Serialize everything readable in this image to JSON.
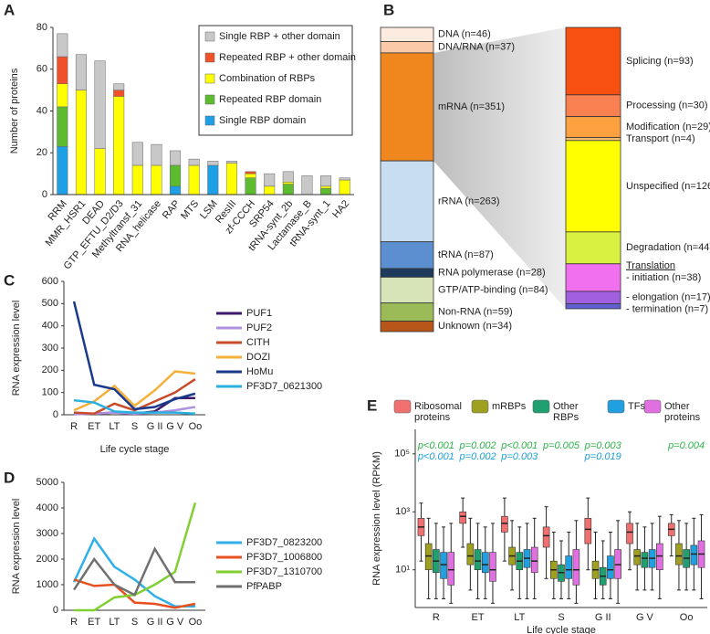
{
  "chart_data": [
    {
      "type": "stacked-bar",
      "panel_label": "A",
      "y_label": "Number of proteins",
      "categories": [
        "RRM",
        "MMR_HSR1",
        "DEAD",
        "GTP_EFTU_D2/D3",
        "Methyltransf_31",
        "RNA_helicase",
        "RAP",
        "MTS",
        "LSM",
        "ResIII",
        "zf-CCCH",
        "SRP54",
        "tRNA-synt_2b",
        "Lactamase_B",
        "tRNA-synt_1",
        "HA2"
      ],
      "ylim": [
        0,
        80
      ],
      "yticks": [
        0,
        20,
        40,
        60,
        80
      ],
      "series": [
        {
          "name": "Single RBP domain",
          "color": "#1ea0e6",
          "values": [
            23,
            0,
            0,
            0,
            0,
            0,
            4,
            0,
            14,
            0,
            0,
            0,
            0,
            0,
            0,
            0
          ]
        },
        {
          "name": "Repeated RBP domain",
          "color": "#5dbb2f",
          "values": [
            19,
            0,
            0,
            0,
            0,
            0,
            10,
            0,
            0,
            0,
            8,
            0,
            5,
            0,
            3,
            0
          ]
        },
        {
          "name": "Combination of RBPs",
          "color": "#ffff00",
          "values": [
            11,
            50,
            22,
            47,
            14,
            14,
            0,
            14,
            0,
            15,
            2,
            4,
            1,
            0,
            1,
            7
          ]
        },
        {
          "name": "Repeated RBP + other domain",
          "color": "#f0502a",
          "values": [
            13,
            0,
            0,
            3,
            0,
            0,
            0,
            0,
            0,
            0,
            1,
            0,
            0,
            0,
            0,
            0
          ]
        },
        {
          "name": "Single RBP + other domain",
          "color": "#c8c8c8",
          "values": [
            11,
            17,
            42,
            3,
            11,
            10,
            7,
            3,
            2,
            1,
            0,
            6,
            5,
            9,
            5,
            1
          ]
        }
      ]
    },
    {
      "type": "stacked-column",
      "panel_label": "B",
      "annotation": "Translation",
      "columns": [
        {
          "values": [
            46,
            37,
            351,
            263,
            87,
            28,
            84,
            59,
            34
          ],
          "value_labels": [
            "DNA (n=46)",
            "DNA/RNA (n=37)",
            "mRNA (n=351)",
            "rRNA (n=263)",
            "tRNA (n=87)",
            "RNA polymerase (n=28)",
            "GTP/ATP-binding (n=84)",
            "Non-RNA (n=59)",
            "Unknown (n=34)"
          ],
          "colors": [
            "#fdebe0",
            "#fbc9a8",
            "#f0861e",
            "#c9ddf1",
            "#5b8fd0",
            "#1f3b5c",
            "#d6e4b8",
            "#9bbb59",
            "#b8561a"
          ]
        },
        {
          "values": [
            93,
            30,
            29,
            4,
            126,
            44,
            38,
            17,
            7
          ],
          "value_labels": [
            "Splicing (n=93)",
            "Processing (n=30)",
            "Modification (n=29)",
            "Transport (n=4)",
            "Unspecified (n=126)",
            "Degradation (n=44)",
            "- initiation (n=38)",
            "- elongation (n=17)",
            "- termination (n=7)"
          ],
          "colors": [
            "#f75010",
            "#f98050",
            "#fca040",
            "#fbc070",
            "#ffff00",
            "#d8f040",
            "#f070f0",
            "#a060e0",
            "#6060d0"
          ]
        }
      ]
    },
    {
      "type": "line",
      "panel_label": "C",
      "y_label": "RNA expression level",
      "x_label": "Life cycle stage",
      "categories": [
        "R",
        "ET",
        "LT",
        "S",
        "G II",
        "G V",
        "Oo"
      ],
      "ylim": [
        0,
        600
      ],
      "yticks": [
        0,
        100,
        200,
        300,
        400,
        500,
        600
      ],
      "series": [
        {
          "name": "PUF1",
          "color": "#3d1a6e",
          "values": [
            5,
            5,
            10,
            5,
            15,
            75,
            75
          ]
        },
        {
          "name": "PUF2",
          "color": "#b090e0",
          "values": [
            2,
            5,
            10,
            5,
            10,
            20,
            35
          ]
        },
        {
          "name": "CITH",
          "color": "#c84b2a",
          "values": [
            10,
            5,
            50,
            20,
            60,
            100,
            160
          ]
        },
        {
          "name": "DOZI",
          "color": "#f5b03c",
          "values": [
            20,
            60,
            130,
            40,
            110,
            195,
            185
          ]
        },
        {
          "name": "HoMu",
          "color": "#1a3a8c",
          "values": [
            510,
            135,
            115,
            25,
            35,
            70,
            95
          ]
        },
        {
          "name": "PF3D7_0621300",
          "color": "#2ab0e0",
          "values": [
            65,
            55,
            15,
            10,
            10,
            10,
            5
          ]
        }
      ]
    },
    {
      "type": "line",
      "panel_label": "D",
      "y_label": "RNA expression level",
      "x_label": "Life cycle stage",
      "categories": [
        "R",
        "ET",
        "LT",
        "S",
        "G II",
        "G V",
        "Oo"
      ],
      "ylim": [
        0,
        5000
      ],
      "yticks": [
        0,
        1000,
        2000,
        3000,
        4000,
        5000
      ],
      "series": [
        {
          "name": "PF3D7_0823200",
          "color": "#30b0e8",
          "values": [
            1100,
            2800,
            1700,
            1200,
            550,
            150,
            150
          ]
        },
        {
          "name": "PF3D7_1006800",
          "color": "#e85020",
          "values": [
            1200,
            950,
            1000,
            300,
            250,
            100,
            250
          ]
        },
        {
          "name": "PF3D7_1310700",
          "color": "#80d030",
          "values": [
            0,
            0,
            500,
            600,
            1000,
            1500,
            4200
          ]
        },
        {
          "name": "PfPABP",
          "color": "#707070",
          "values": [
            800,
            2000,
            1000,
            600,
            2400,
            1100,
            1100
          ]
        }
      ]
    },
    {
      "type": "box",
      "panel_label": "E",
      "y_label": "RNA expression level (RPKM)",
      "x_label": "Life cycle stage",
      "log_scale": true,
      "categories": [
        "R",
        "ET",
        "LT",
        "S",
        "G II",
        "G V",
        "Oo"
      ],
      "ylim": [
        0.5,
        700000
      ],
      "yticks": [
        {
          "value": 10,
          "label": "10¹"
        },
        {
          "value": 1000,
          "label": "10³"
        },
        {
          "value": 100000,
          "label": "10⁵"
        }
      ],
      "p_value_rows": [
        {
          "color": "#2db34a",
          "labels": [
            "p<0.001",
            "p=0.002",
            "p<0.001",
            "p=0.005",
            "p=0.003",
            null,
            "p=0.004"
          ]
        },
        {
          "color": "#1b9fd8",
          "labels": [
            "p<0.001",
            "p=0.002",
            "p=0.003",
            null,
            "p=0.019",
            null,
            null
          ]
        }
      ],
      "series": [
        {
          "name": "Ribosomal proteins",
          "color": "#f07070",
          "median": [
            300,
            700,
            400,
            150,
            250,
            200,
            250
          ],
          "q1": [
            150,
            400,
            200,
            60,
            80,
            80,
            150
          ],
          "q3": [
            600,
            1000,
            700,
            300,
            600,
            400,
            400
          ],
          "low": [
            20,
            60,
            20,
            5,
            10,
            10,
            30
          ],
          "high": [
            2000,
            3000,
            3000,
            1500,
            3000,
            1000,
            800
          ]
        },
        {
          "name": "mRBPs",
          "color": "#a0a020",
          "median": [
            30,
            30,
            30,
            10,
            10,
            30,
            30
          ],
          "q1": [
            10,
            15,
            15,
            5,
            5,
            15,
            15
          ],
          "q3": [
            80,
            80,
            60,
            20,
            20,
            50,
            80
          ],
          "low": [
            1,
            2,
            2,
            1,
            1,
            2,
            2
          ],
          "high": [
            600,
            600,
            500,
            200,
            200,
            400,
            500
          ]
        },
        {
          "name": "Other RBPs",
          "color": "#20a070",
          "median": [
            20,
            20,
            20,
            8,
            6,
            25,
            25
          ],
          "q1": [
            8,
            10,
            10,
            4,
            3,
            12,
            12
          ],
          "q3": [
            50,
            50,
            40,
            15,
            12,
            40,
            50
          ],
          "low": [
            1,
            1,
            1,
            1,
            1,
            2,
            2
          ],
          "high": [
            400,
            400,
            300,
            100,
            100,
            300,
            400
          ]
        },
        {
          "name": "TFs",
          "color": "#20a0e0",
          "median": [
            15,
            15,
            25,
            10,
            10,
            25,
            35
          ],
          "q1": [
            5,
            8,
            12,
            5,
            5,
            12,
            15
          ],
          "q3": [
            40,
            40,
            50,
            30,
            30,
            50,
            70
          ],
          "low": [
            1,
            1,
            1,
            1,
            1,
            2,
            2
          ],
          "high": [
            300,
            300,
            400,
            200,
            200,
            400,
            600
          ]
        },
        {
          "name": "Other proteins",
          "color": "#e070e0",
          "median": [
            10,
            10,
            20,
            10,
            15,
            30,
            35
          ],
          "q1": [
            3,
            4,
            8,
            3,
            5,
            10,
            12
          ],
          "q3": [
            40,
            40,
            60,
            50,
            50,
            80,
            100
          ],
          "low": [
            0.7,
            0.7,
            1,
            0.7,
            0.7,
            1,
            1
          ],
          "high": [
            400,
            400,
            600,
            500,
            500,
            700,
            800
          ]
        }
      ]
    }
  ]
}
